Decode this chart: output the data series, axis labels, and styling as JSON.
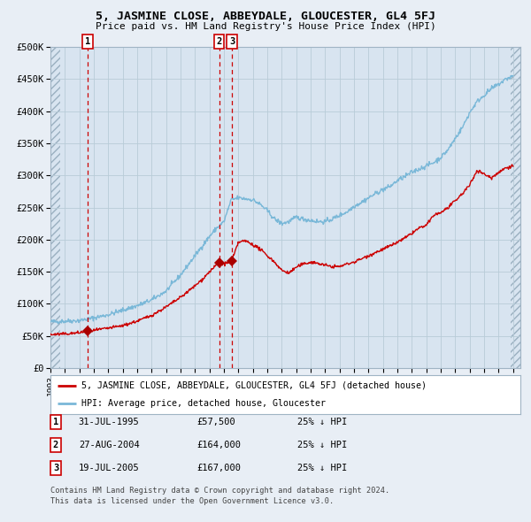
{
  "title": "5, JASMINE CLOSE, ABBEYDALE, GLOUCESTER, GL4 5FJ",
  "subtitle": "Price paid vs. HM Land Registry's House Price Index (HPI)",
  "background_color": "#e8eef5",
  "plot_bg_color": "#d8e4f0",
  "grid_color": "#b8ccd8",
  "hpi_color": "#7ab8d8",
  "price_color": "#cc0000",
  "vline_color": "#cc0000",
  "marker_color": "#aa0000",
  "transactions": [
    {
      "date_num": 1995.58,
      "price": 57500,
      "label": "1"
    },
    {
      "date_num": 2004.66,
      "price": 164000,
      "label": "2"
    },
    {
      "date_num": 2005.55,
      "price": 167000,
      "label": "3"
    }
  ],
  "xmin": 1993.0,
  "xmax": 2025.5,
  "ymin": 0,
  "ymax": 500000,
  "yticks": [
    0,
    50000,
    100000,
    150000,
    200000,
    250000,
    300000,
    350000,
    400000,
    450000,
    500000
  ],
  "ytick_labels": [
    "£0",
    "£50K",
    "£100K",
    "£150K",
    "£200K",
    "£250K",
    "£300K",
    "£350K",
    "£400K",
    "£450K",
    "£500K"
  ],
  "legend_label_price": "5, JASMINE CLOSE, ABBEYDALE, GLOUCESTER, GL4 5FJ (detached house)",
  "legend_label_hpi": "HPI: Average price, detached house, Gloucester",
  "table_rows": [
    {
      "num": "1",
      "date": "31-JUL-1995",
      "price": "£57,500",
      "note": "25% ↓ HPI"
    },
    {
      "num": "2",
      "date": "27-AUG-2004",
      "price": "£164,000",
      "note": "25% ↓ HPI"
    },
    {
      "num": "3",
      "date": "19-JUL-2005",
      "price": "£167,000",
      "note": "25% ↓ HPI"
    }
  ],
  "footer_line1": "Contains HM Land Registry data © Crown copyright and database right 2024.",
  "footer_line2": "This data is licensed under the Open Government Licence v3.0.",
  "hpi_anchors": [
    [
      1993.0,
      72000
    ],
    [
      1994.0,
      73000
    ],
    [
      1995.0,
      74000
    ],
    [
      1996.0,
      78000
    ],
    [
      1997.0,
      83000
    ],
    [
      1998.0,
      90000
    ],
    [
      1999.0,
      97000
    ],
    [
      2000.0,
      106000
    ],
    [
      2001.0,
      120000
    ],
    [
      2002.0,
      145000
    ],
    [
      2003.0,
      175000
    ],
    [
      2004.0,
      205000
    ],
    [
      2004.5,
      218000
    ],
    [
      2005.0,
      228000
    ],
    [
      2005.5,
      262000
    ],
    [
      2006.0,
      265000
    ],
    [
      2007.0,
      262000
    ],
    [
      2007.5,
      255000
    ],
    [
      2008.0,
      245000
    ],
    [
      2008.5,
      232000
    ],
    [
      2009.0,
      225000
    ],
    [
      2009.5,
      228000
    ],
    [
      2010.0,
      235000
    ],
    [
      2010.5,
      232000
    ],
    [
      2011.0,
      230000
    ],
    [
      2011.5,
      228000
    ],
    [
      2012.0,
      228000
    ],
    [
      2012.5,
      232000
    ],
    [
      2013.0,
      238000
    ],
    [
      2013.5,
      243000
    ],
    [
      2014.0,
      252000
    ],
    [
      2014.5,
      258000
    ],
    [
      2015.0,
      265000
    ],
    [
      2015.5,
      272000
    ],
    [
      2016.0,
      278000
    ],
    [
      2016.5,
      283000
    ],
    [
      2017.0,
      292000
    ],
    [
      2017.5,
      298000
    ],
    [
      2018.0,
      305000
    ],
    [
      2018.5,
      310000
    ],
    [
      2019.0,
      315000
    ],
    [
      2019.5,
      320000
    ],
    [
      2020.0,
      328000
    ],
    [
      2020.5,
      340000
    ],
    [
      2021.0,
      358000
    ],
    [
      2021.5,
      375000
    ],
    [
      2022.0,
      398000
    ],
    [
      2022.5,
      415000
    ],
    [
      2023.0,
      425000
    ],
    [
      2023.5,
      435000
    ],
    [
      2024.0,
      442000
    ],
    [
      2024.5,
      450000
    ],
    [
      2025.0,
      455000
    ]
  ],
  "price_anchors": [
    [
      1993.0,
      52000
    ],
    [
      1994.0,
      53000
    ],
    [
      1995.0,
      55000
    ],
    [
      1995.58,
      57500
    ],
    [
      1996.0,
      58500
    ],
    [
      1997.0,
      62000
    ],
    [
      1998.0,
      66000
    ],
    [
      1999.0,
      73000
    ],
    [
      2000.0,
      82000
    ],
    [
      2001.0,
      95000
    ],
    [
      2002.0,
      110000
    ],
    [
      2003.0,
      128000
    ],
    [
      2003.5,
      138000
    ],
    [
      2004.0,
      150000
    ],
    [
      2004.66,
      164000
    ],
    [
      2005.0,
      162000
    ],
    [
      2005.55,
      167000
    ],
    [
      2006.0,
      196000
    ],
    [
      2006.5,
      198000
    ],
    [
      2007.0,
      192000
    ],
    [
      2007.5,
      185000
    ],
    [
      2008.0,
      175000
    ],
    [
      2008.5,
      165000
    ],
    [
      2009.0,
      152000
    ],
    [
      2009.5,
      148000
    ],
    [
      2010.0,
      157000
    ],
    [
      2010.5,
      162000
    ],
    [
      2011.0,
      165000
    ],
    [
      2011.5,
      163000
    ],
    [
      2012.0,
      160000
    ],
    [
      2012.5,
      158000
    ],
    [
      2013.0,
      158000
    ],
    [
      2013.5,
      162000
    ],
    [
      2014.0,
      165000
    ],
    [
      2014.5,
      170000
    ],
    [
      2015.0,
      175000
    ],
    [
      2015.5,
      180000
    ],
    [
      2016.0,
      185000
    ],
    [
      2016.5,
      190000
    ],
    [
      2017.0,
      196000
    ],
    [
      2017.5,
      202000
    ],
    [
      2018.0,
      210000
    ],
    [
      2018.5,
      218000
    ],
    [
      2019.0,
      222000
    ],
    [
      2019.5,
      238000
    ],
    [
      2020.0,
      242000
    ],
    [
      2020.5,
      250000
    ],
    [
      2021.0,
      260000
    ],
    [
      2021.5,
      272000
    ],
    [
      2022.0,
      285000
    ],
    [
      2022.5,
      308000
    ],
    [
      2023.0,
      302000
    ],
    [
      2023.5,
      296000
    ],
    [
      2024.0,
      305000
    ],
    [
      2024.5,
      312000
    ],
    [
      2025.0,
      315000
    ]
  ]
}
